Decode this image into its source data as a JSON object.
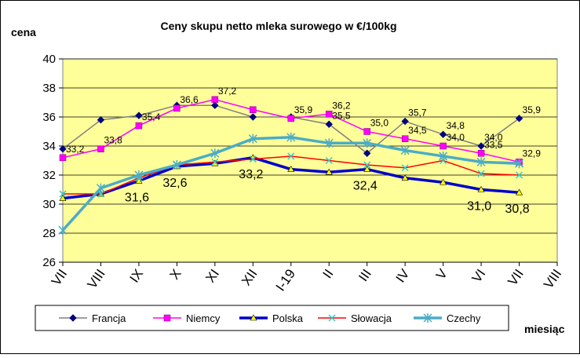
{
  "chart_data": {
    "type": "line",
    "title": "Ceny skupu netto mleka surowego  w €/100kg",
    "y_label": "cena",
    "x_label": "miesiąc",
    "categories": [
      "VII",
      "VIII",
      "IX",
      "X",
      "XI",
      "XII",
      "I-19",
      "II",
      "III",
      "IV",
      "V",
      "VI",
      "VII",
      "VIII"
    ],
    "ylim": [
      26,
      40
    ],
    "yticks": [
      26,
      28,
      30,
      32,
      34,
      36,
      38,
      40
    ],
    "grid": true,
    "plot_background": "#ffff99",
    "legend": "bottom",
    "series": [
      {
        "name": "Francja",
        "color": "#808080",
        "marker": "diamond",
        "marker_color": "#000080",
        "line_width": 1.5,
        "values": [
          33.8,
          35.8,
          36.1,
          36.8,
          36.8,
          36.0,
          36.0,
          35.5,
          33.5,
          35.7,
          34.8,
          34.0,
          35.9,
          null
        ],
        "value_labels": [
          null,
          null,
          null,
          null,
          null,
          null,
          null,
          "35,5",
          null,
          "35,7",
          "34,8",
          "34,0",
          "35,9",
          null
        ]
      },
      {
        "name": "Niemcy",
        "color": "#ff00ff",
        "marker": "square",
        "marker_color": "#ff00ff",
        "line_width": 1.5,
        "values": [
          33.2,
          33.8,
          35.4,
          36.6,
          37.2,
          36.5,
          35.9,
          36.2,
          35.0,
          34.5,
          34.0,
          33.5,
          32.9,
          null
        ],
        "value_labels": [
          "33,2",
          "33,8",
          "35,4",
          "36,6",
          "37,2",
          null,
          "35,9",
          "36,2",
          "35,0",
          "34,5",
          "34,0",
          "33,5",
          "32,9",
          null
        ]
      },
      {
        "name": "Polska",
        "color": "#0000cc",
        "marker": "triangle",
        "marker_color": "#ffff00",
        "line_width": 3.5,
        "values": [
          30.4,
          30.7,
          31.6,
          32.6,
          32.8,
          33.2,
          32.4,
          32.2,
          32.4,
          31.8,
          31.5,
          31.0,
          30.8,
          null
        ],
        "value_labels": [
          null,
          null,
          "31,6",
          "32,6",
          null,
          "33,2",
          null,
          null,
          "32,4",
          null,
          null,
          "31,0",
          "30,8",
          null
        ]
      },
      {
        "name": "Słowacja",
        "color": "#ff0000",
        "marker": "x",
        "marker_color": "#33cccc",
        "line_width": 1.5,
        "values": [
          30.7,
          30.7,
          31.8,
          32.7,
          32.9,
          33.1,
          33.3,
          33.0,
          32.7,
          32.5,
          33.0,
          32.1,
          32.0,
          null
        ]
      },
      {
        "name": "Czechy",
        "color": "#4bacc6",
        "marker": "star",
        "marker_color": "#4bacc6",
        "line_width": 3.5,
        "values": [
          28.2,
          31.1,
          32.0,
          32.7,
          33.5,
          34.5,
          34.6,
          34.2,
          34.2,
          33.7,
          33.3,
          32.9,
          32.8,
          null
        ]
      }
    ]
  }
}
